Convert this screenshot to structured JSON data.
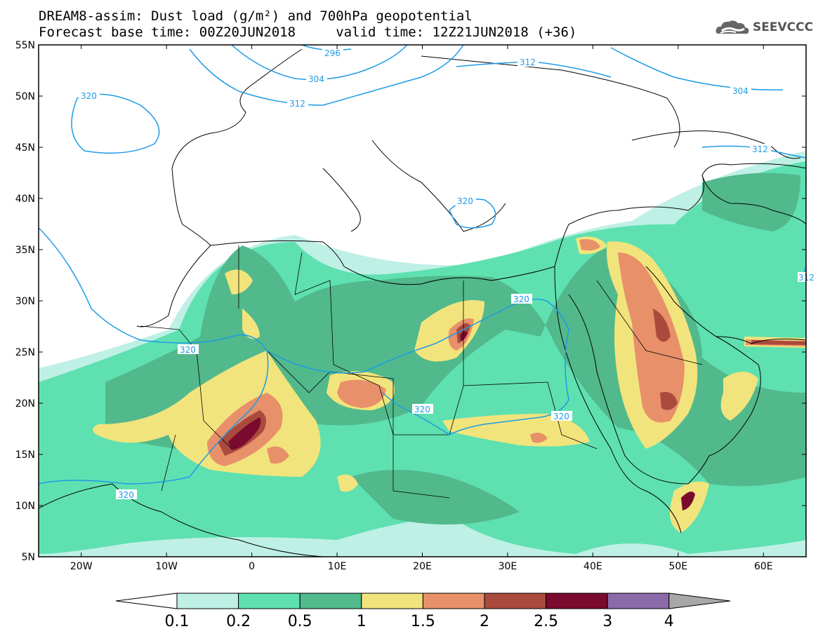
{
  "header": {
    "title_line1": "DREAM8-assim: Dust load (g/m²) and 700hPa geopotential",
    "title_line2": "Forecast base time: 00Z20JUN2018     valid time: 12Z21JUN2018 (+36)"
  },
  "logo": {
    "text": "SEEVCCC",
    "icon": "cloud-icon"
  },
  "map": {
    "projection": "lat-lon",
    "lon_range": [
      -25,
      65
    ],
    "lat_range": [
      5,
      55
    ],
    "lat_ticks": [
      "55N",
      "50N",
      "45N",
      "40N",
      "35N",
      "30N",
      "25N",
      "20N",
      "15N",
      "10N",
      "5N"
    ],
    "lon_ticks": [
      "20W",
      "10W",
      "0",
      "10E",
      "20E",
      "30E",
      "40E",
      "50E",
      "60E"
    ],
    "contour_color": "#1e9be6",
    "contour_labels": [
      "320",
      "312",
      "304",
      "296",
      "320",
      "320",
      "320",
      "320",
      "320",
      "320",
      "312",
      "304",
      "312",
      "312"
    ]
  },
  "colorbar": {
    "levels": [
      "0.1",
      "0.2",
      "0.5",
      "1",
      "1.5",
      "2",
      "2.5",
      "3",
      "4"
    ],
    "colors": [
      "#ffffff",
      "#bff0e6",
      "#5fe0b0",
      "#52b98c",
      "#f2e47c",
      "#e8906a",
      "#a94a3c",
      "#7a0a2e",
      "#8a6aa8",
      "#a8a8a8"
    ]
  }
}
